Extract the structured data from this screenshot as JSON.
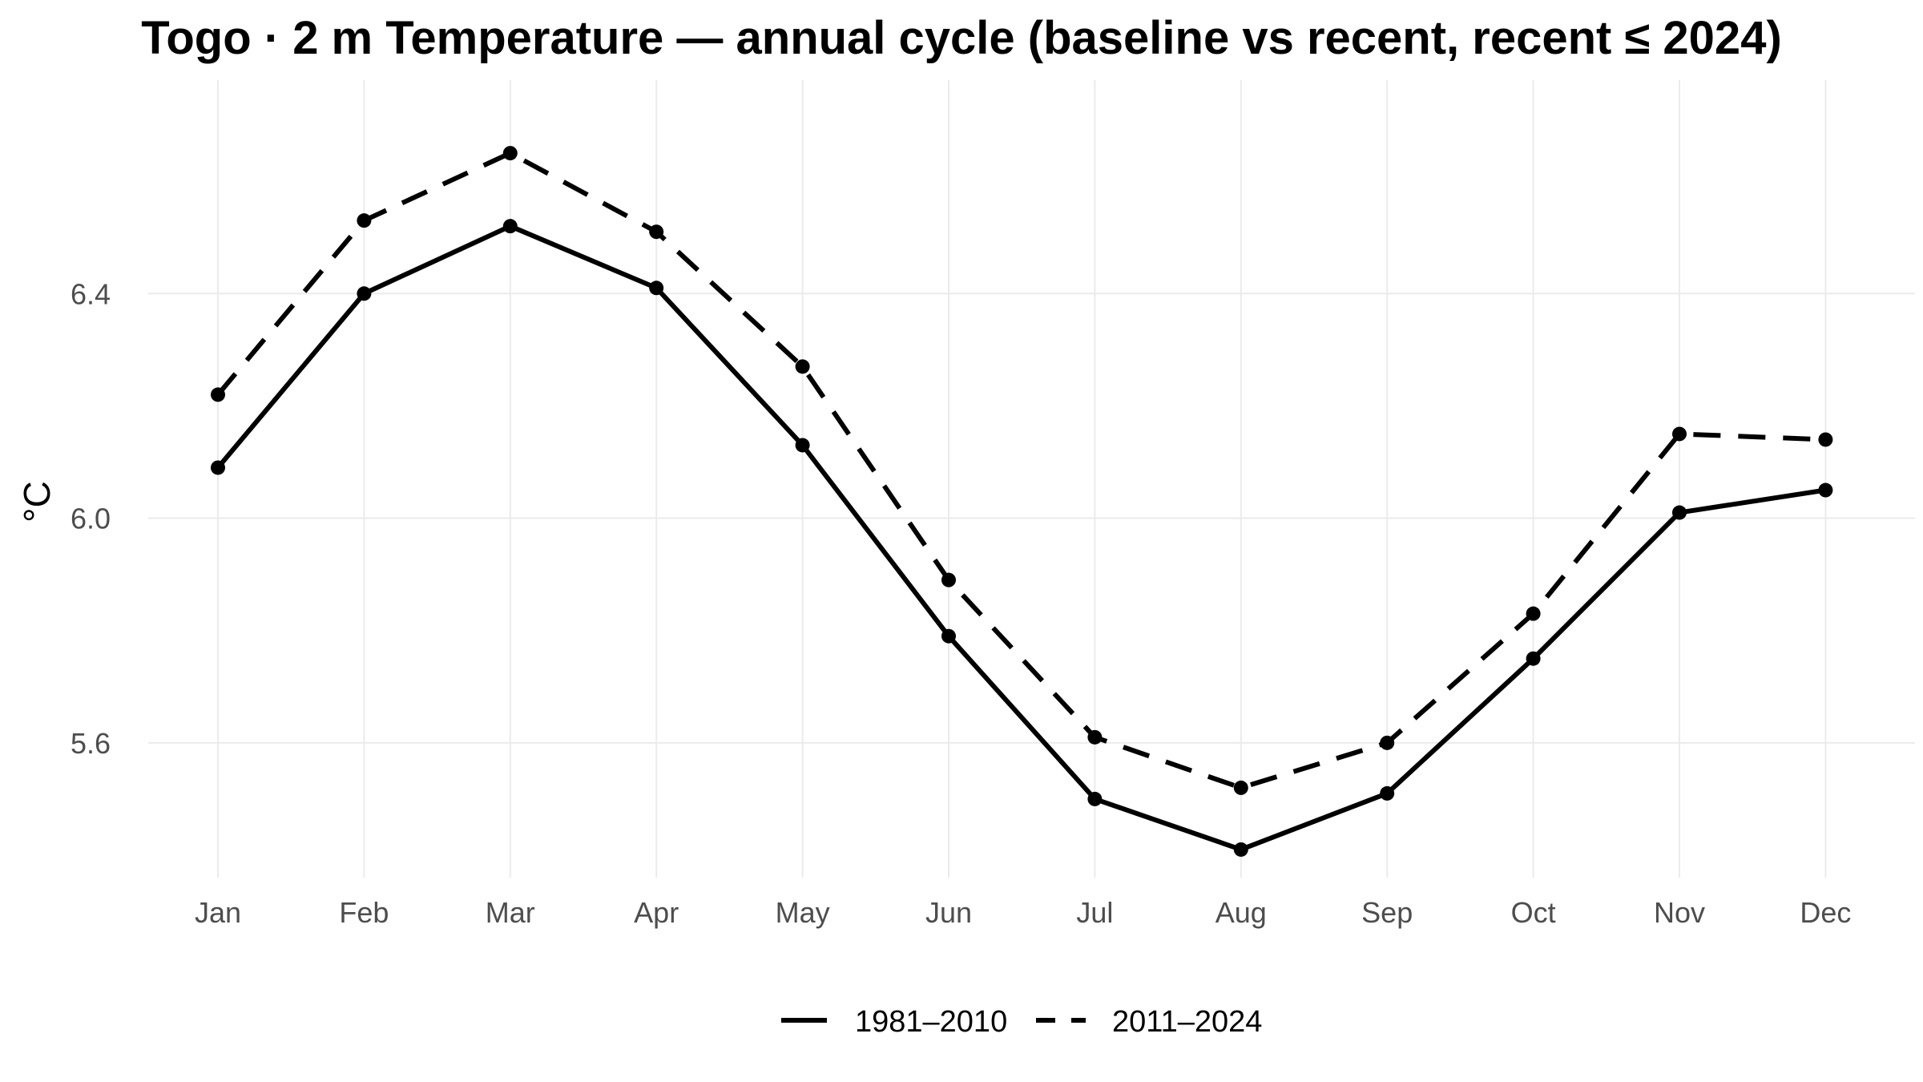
{
  "chart_data": {
    "type": "line",
    "title": "Togo · 2 m Temperature — annual cycle (baseline vs recent, recent ≤ 2024)",
    "xlabel": "",
    "ylabel": "°C",
    "categories": [
      "Jan",
      "Feb",
      "Mar",
      "Apr",
      "May",
      "Jun",
      "Jul",
      "Aug",
      "Sep",
      "Oct",
      "Nov",
      "Dec"
    ],
    "ylim": [
      5.36,
      6.78
    ],
    "yticks": [
      5.6,
      6.0,
      6.4
    ],
    "ytick_labels": [
      "5.6",
      "6.0",
      "6.4"
    ],
    "grid": true,
    "legend_position": "bottom",
    "series": [
      {
        "name": "1981–2010",
        "line_style": "solid",
        "color": "#000000",
        "values": [
          6.09,
          6.4,
          6.52,
          6.41,
          6.13,
          5.79,
          5.5,
          5.41,
          5.51,
          5.75,
          6.01,
          6.05
        ]
      },
      {
        "name": "2011–2024",
        "line_style": "dashed",
        "color": "#000000",
        "values": [
          6.22,
          6.53,
          6.65,
          6.51,
          6.27,
          5.89,
          5.61,
          5.52,
          5.6,
          5.83,
          6.15,
          6.14
        ]
      }
    ]
  }
}
